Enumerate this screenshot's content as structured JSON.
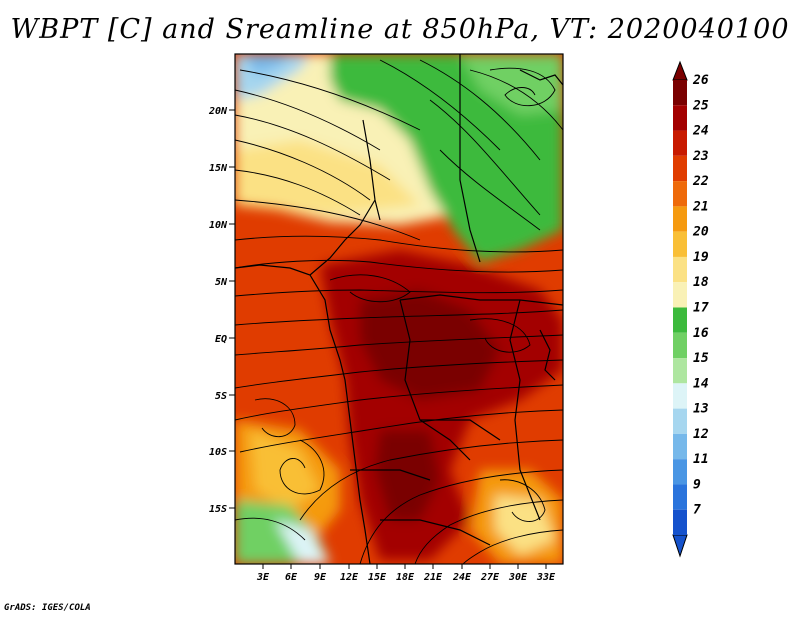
{
  "title": "WBPT [C] and Sreamline at 850hPa, VT: 2020040100",
  "credit": "GrADS: IGES/COLA",
  "lat_labels": [
    "20N",
    "15N",
    "10N",
    "5N",
    "EQ",
    "5S",
    "10S",
    "15S"
  ],
  "lon_labels": [
    "3E",
    "6E",
    "9E",
    "12E",
    "15E",
    "18E",
    "21E",
    "24E",
    "27E",
    "30E",
    "33E"
  ],
  "colorbar": {
    "labels": [
      "26",
      "25",
      "24",
      "23",
      "22",
      "21",
      "20",
      "19",
      "18",
      "17",
      "16",
      "15",
      "14",
      "13",
      "12",
      "11",
      "9",
      "7"
    ],
    "colors": [
      "#7a0000",
      "#a30000",
      "#c81a00",
      "#e03c00",
      "#ee6a0a",
      "#f59a10",
      "#f9bf36",
      "#fbe184",
      "#f9f1b6",
      "#3cba3c",
      "#70d064",
      "#aee6a0",
      "#ddf4f7",
      "#a6d6ef",
      "#76b8ea",
      "#4a96e4",
      "#2a74dc",
      "#1552cc"
    ]
  },
  "colors": {
    "hot": "#a30000",
    "warm": "#e03c00",
    "mild": "#f9f1b6",
    "green": "#3cba3c",
    "cool": "#a6d6ef"
  }
}
